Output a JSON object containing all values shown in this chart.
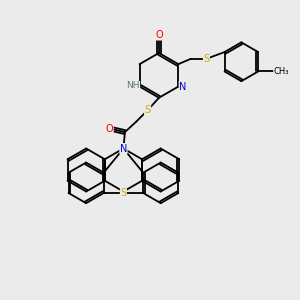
{
  "background_color": "#ebebeb",
  "atom_colors": {
    "C": "#000000",
    "N": "#0000cc",
    "O": "#ff0000",
    "S": "#ccaa00",
    "H": "#607878"
  },
  "figsize": [
    3.0,
    3.0
  ],
  "dpi": 100,
  "lw": 1.3,
  "fs": 7.0
}
